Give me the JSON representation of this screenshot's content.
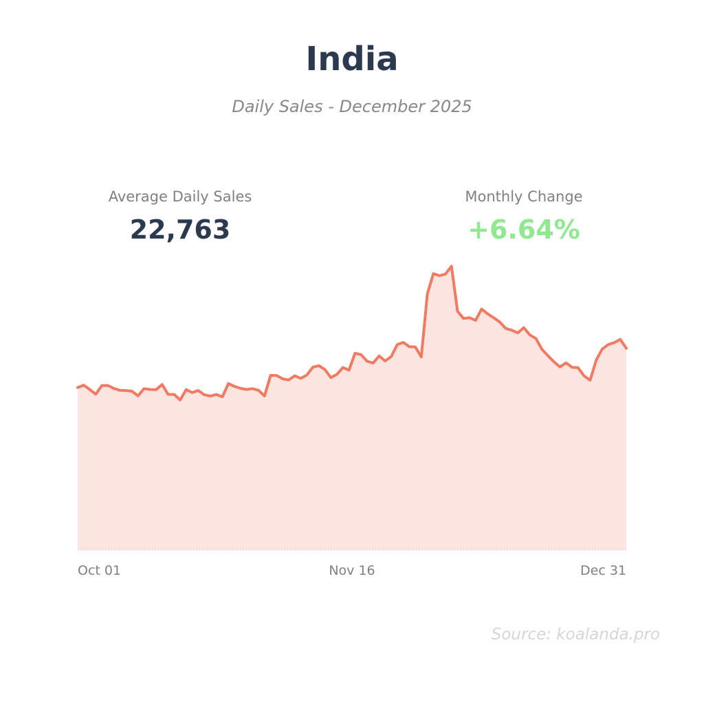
{
  "header": {
    "title": "India",
    "subtitle": "Daily Sales - December 2025"
  },
  "stats": {
    "avg_label": "Average Daily Sales",
    "avg_value": "22,763",
    "change_label": "Monthly Change",
    "change_value": "+6.64%"
  },
  "colors": {
    "line": "#f07a62",
    "fill": "#fce5e1",
    "positive": "#90e890",
    "title": "#2b3a4e"
  },
  "source": "Source: koalanda.pro",
  "chart_data": {
    "type": "area",
    "title": "India",
    "subtitle": "Daily Sales - December 2025",
    "x_tick_labels": [
      "Oct 01",
      "Nov 16",
      "Dec 31"
    ],
    "x_start": "Oct 01",
    "x_end": "Dec 31",
    "ylim": [
      0,
      40000
    ],
    "grid": false,
    "legend": "none",
    "series": [
      {
        "values": [
          19700,
          19980,
          19460,
          18880,
          19930,
          19930,
          19590,
          19350,
          19330,
          19250,
          18680,
          19560,
          19460,
          19430,
          20060,
          18870,
          18850,
          18190,
          19430,
          19080,
          19330,
          18820,
          18660,
          18850,
          18570,
          20170,
          19830,
          19590,
          19460,
          19560,
          19360,
          18670,
          21170,
          21160,
          20740,
          20620,
          21120,
          20800,
          21200,
          22150,
          22340,
          21880,
          20890,
          21290,
          22120,
          21800,
          23850,
          23680,
          22880,
          22660,
          23520,
          22920,
          23430,
          24890,
          25170,
          24640,
          24620,
          23400,
          31050,
          33500,
          33250,
          33440,
          34400,
          28940,
          28070,
          28160,
          27840,
          29210,
          28630,
          28150,
          27640,
          26860,
          26640,
          26320,
          26940,
          26070,
          25640,
          24330,
          23550,
          22810,
          22190,
          22680,
          22150,
          22100,
          21100,
          20580,
          23010,
          24350,
          24900,
          25130,
          25530,
          24450
        ]
      }
    ]
  }
}
